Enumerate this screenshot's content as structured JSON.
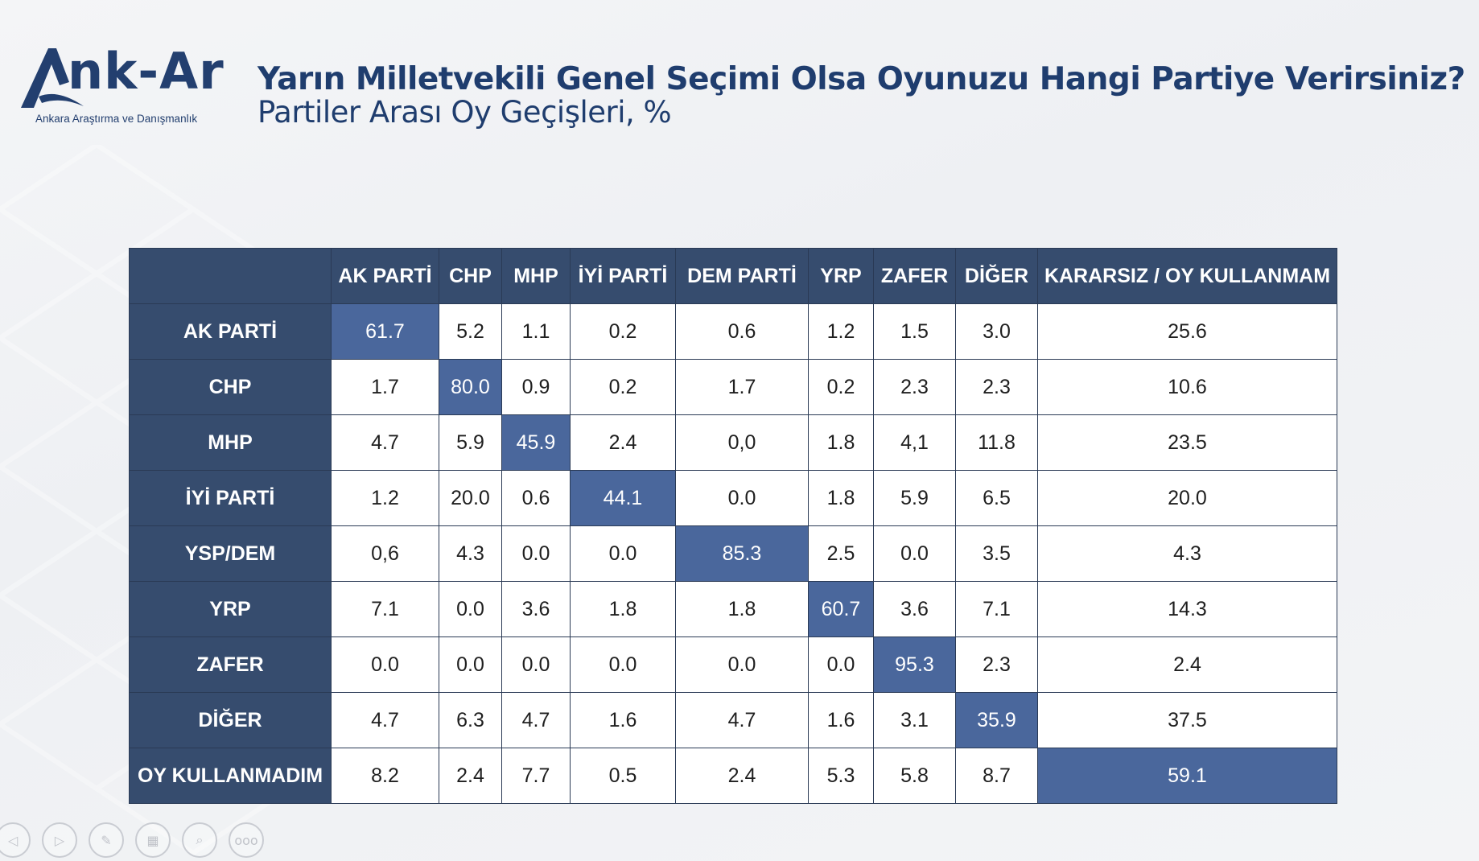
{
  "logo": {
    "name": "Ank-Ar",
    "name_text": "nk-Ar",
    "tagline": "Ankara Araştırma ve Danışmanlık"
  },
  "title": "Yarın Milletvekili Genel Seçimi Olsa Oyunuzu Hangi Partiye Verirsiniz?",
  "subtitle": "Partiler Arası Oy Geçişleri, %",
  "table": {
    "columns": [
      "AK PARTİ",
      "CHP",
      "MHP",
      "İYİ PARTİ",
      "DEM PARTİ",
      "YRP",
      "ZAFER",
      "DİĞER",
      "KARARSIZ / OY KULLANMAM"
    ],
    "rows": [
      {
        "label": "AK PARTİ",
        "values": [
          "61.7",
          "5.2",
          "1.1",
          "0.2",
          "0.6",
          "1.2",
          "1.5",
          "3.0",
          "25.6"
        ],
        "highlight": 0
      },
      {
        "label": "CHP",
        "values": [
          "1.7",
          "80.0",
          "0.9",
          "0.2",
          "1.7",
          "0.2",
          "2.3",
          "2.3",
          "10.6"
        ],
        "highlight": 1
      },
      {
        "label": "MHP",
        "values": [
          "4.7",
          "5.9",
          "45.9",
          "2.4",
          "0,0",
          "1.8",
          "4,1",
          "11.8",
          "23.5"
        ],
        "highlight": 2
      },
      {
        "label": "İYİ PARTİ",
        "values": [
          "1.2",
          "20.0",
          "0.6",
          "44.1",
          "0.0",
          "1.8",
          "5.9",
          "6.5",
          "20.0"
        ],
        "highlight": 3
      },
      {
        "label": "YSP/DEM",
        "values": [
          "0,6",
          "4.3",
          "0.0",
          "0.0",
          "85.3",
          "2.5",
          "0.0",
          "3.5",
          "4.3"
        ],
        "highlight": 4
      },
      {
        "label": "YRP",
        "values": [
          "7.1",
          "0.0",
          "3.6",
          "1.8",
          "1.8",
          "60.7",
          "3.6",
          "7.1",
          "14.3"
        ],
        "highlight": 5
      },
      {
        "label": "ZAFER",
        "values": [
          "0.0",
          "0.0",
          "0.0",
          "0.0",
          "0.0",
          "0.0",
          "95.3",
          "2.3",
          "2.4"
        ],
        "highlight": 6
      },
      {
        "label": "DİĞER",
        "values": [
          "4.7",
          "6.3",
          "4.7",
          "1.6",
          "4.7",
          "1.6",
          "3.1",
          "35.9",
          "37.5"
        ],
        "highlight": 7
      },
      {
        "label": "OY KULLANMADIM",
        "values": [
          "8.2",
          "2.4",
          "7.7",
          "0.5",
          "2.4",
          "5.3",
          "5.8",
          "8.7",
          "59.1"
        ],
        "highlight": 8
      }
    ]
  },
  "colors": {
    "header_bg": "#364c6e",
    "diag_bg": "#4a679c",
    "brand": "#1f3d6e"
  },
  "controls": [
    {
      "name": "prev-slide-icon",
      "glyph": "◁"
    },
    {
      "name": "next-slide-icon",
      "glyph": "▷"
    },
    {
      "name": "pen-icon",
      "glyph": "✎"
    },
    {
      "name": "slides-grid-icon",
      "glyph": "▦"
    },
    {
      "name": "zoom-icon",
      "glyph": "⌕"
    },
    {
      "name": "more-options-icon",
      "glyph": "ooo"
    }
  ]
}
